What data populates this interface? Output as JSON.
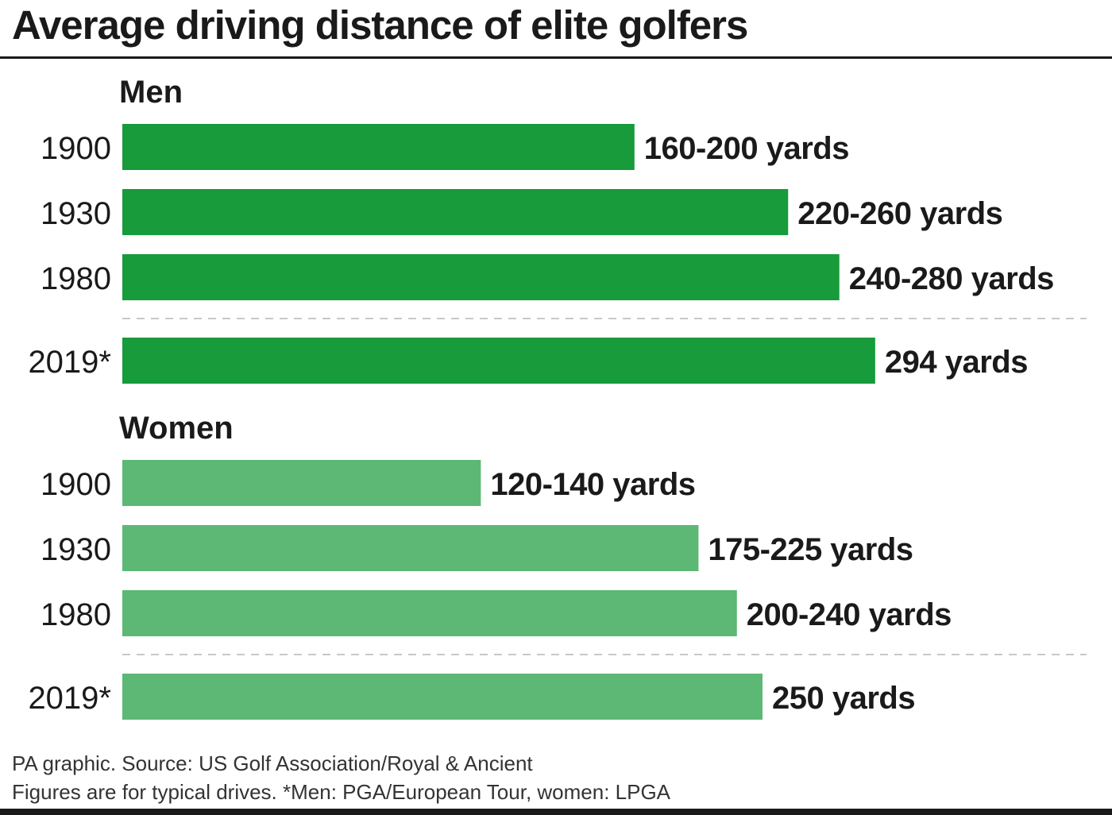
{
  "title": "Average driving distance of elite golfers",
  "colors": {
    "men": "#179b3b",
    "women": "#5cb874",
    "text": "#1a1a1a",
    "divider": "#c8c8c8"
  },
  "chart_data": {
    "type": "bar",
    "orientation": "horizontal",
    "unit": "yards",
    "groups": [
      {
        "name": "Men",
        "color": "#179b3b",
        "bars": [
          {
            "category": "1900",
            "value_range": [
              160,
              200
            ],
            "label": "160-200 yards"
          },
          {
            "category": "1930",
            "value_range": [
              220,
              260
            ],
            "label": "220-260 yards"
          },
          {
            "category": "1980",
            "value_range": [
              240,
              280
            ],
            "label": "240-280 yards"
          },
          {
            "category": "2019*",
            "value": 294,
            "label": "294 yards"
          }
        ]
      },
      {
        "name": "Women",
        "color": "#5cb874",
        "bars": [
          {
            "category": "1900",
            "value_range": [
              120,
              140
            ],
            "label": "120-140 yards"
          },
          {
            "category": "1930",
            "value_range": [
              175,
              225
            ],
            "label": "175-225 yards"
          },
          {
            "category": "1980",
            "value_range": [
              200,
              240
            ],
            "label": "200-240 yards"
          },
          {
            "category": "2019*",
            "value": 250,
            "label": "250 yards"
          }
        ]
      }
    ]
  },
  "footer": {
    "source": "PA graphic. Source: US Golf Association/Royal & Ancient",
    "note": "Figures are for typical drives. *Men: PGA/European Tour, women: LPGA"
  }
}
